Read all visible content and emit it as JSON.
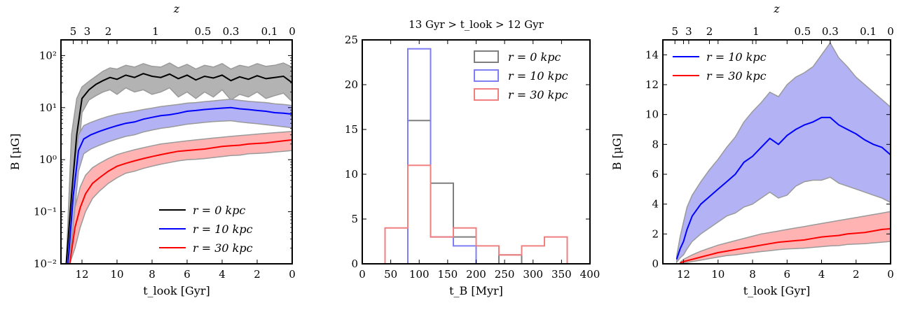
{
  "chart_data": [
    {
      "type": "line",
      "xlabel": "t_look [Gyr]",
      "ylabel": "B [μG]",
      "top_xlabel": "z",
      "xlim": [
        13.2,
        0
      ],
      "ylim": [
        0.01,
        200
      ],
      "yscale": "log",
      "x_ticks": [
        12,
        10,
        8,
        6,
        4,
        2,
        0
      ],
      "x_tick_labels": [
        "12",
        "10",
        "8",
        "6",
        "4",
        "2",
        "0"
      ],
      "y_ticks": [
        0.01,
        0.1,
        1,
        10,
        100
      ],
      "y_tick_labels": [
        "10⁻²",
        "10⁻¹",
        "10⁰",
        "10¹",
        "10²"
      ],
      "top_ticks": [
        {
          "z": "5",
          "t": 12.5
        },
        {
          "z": "3",
          "t": 11.7
        },
        {
          "z": "2",
          "t": 10.5
        },
        {
          "z": "1",
          "t": 7.8
        },
        {
          "z": "0.5",
          "t": 5.1
        },
        {
          "z": "0.3",
          "t": 3.5
        },
        {
          "z": "0.1",
          "t": 1.3
        },
        {
          "z": "0",
          "t": 0
        }
      ],
      "legend_location": "lower-right",
      "series": [
        {
          "name": "r = 0 kpc",
          "color": "#000000",
          "band_color": "#b3b3b3",
          "x": [
            12.9,
            12.6,
            12.3,
            12.0,
            11.6,
            11.2,
            10.8,
            10.4,
            10.0,
            9.5,
            9.0,
            8.5,
            8.0,
            7.5,
            7.0,
            6.5,
            6.0,
            5.5,
            5.0,
            4.5,
            4.0,
            3.5,
            3.0,
            2.5,
            2.0,
            1.5,
            1.0,
            0.5,
            0.0
          ],
          "y": [
            0.01,
            0.2,
            3,
            15,
            22,
            28,
            33,
            38,
            35,
            42,
            38,
            45,
            40,
            38,
            44,
            36,
            42,
            34,
            40,
            37,
            42,
            33,
            39,
            35,
            41,
            36,
            38,
            40,
            30
          ],
          "lower": [
            0.01,
            0.03,
            0.5,
            8,
            14,
            17,
            20,
            22,
            18,
            24,
            20,
            22,
            18,
            20,
            24,
            16,
            20,
            15,
            20,
            16,
            22,
            14,
            18,
            16,
            20,
            15,
            17,
            19,
            13
          ],
          "upper": [
            0.01,
            3,
            15,
            25,
            32,
            40,
            50,
            58,
            55,
            65,
            60,
            70,
            62,
            60,
            72,
            58,
            68,
            55,
            65,
            60,
            70,
            55,
            65,
            60,
            70,
            62,
            65,
            72,
            60
          ]
        },
        {
          "name": "r = 10 kpc",
          "color": "#0000ff",
          "band_color": "#b2b2f5",
          "x": [
            12.8,
            12.5,
            12.2,
            11.9,
            11.5,
            11.0,
            10.5,
            10.0,
            9.5,
            9.0,
            8.5,
            8.0,
            7.5,
            7.0,
            6.5,
            6.0,
            5.5,
            5.0,
            4.5,
            4.0,
            3.5,
            3.0,
            2.5,
            2.0,
            1.5,
            1.0,
            0.5,
            0.0
          ],
          "y": [
            0.01,
            0.2,
            1.5,
            2.5,
            3.0,
            3.5,
            4.0,
            4.5,
            5.0,
            5.3,
            6.0,
            6.5,
            7.0,
            7.3,
            7.8,
            8.5,
            8.8,
            9.2,
            9.5,
            9.8,
            10.0,
            9.5,
            9.2,
            8.8,
            8.5,
            8.0,
            7.8,
            7.5
          ],
          "lower": [
            0.01,
            0.05,
            0.6,
            1.3,
            1.6,
            1.9,
            2.2,
            2.5,
            2.8,
            3.0,
            3.4,
            3.7,
            4.0,
            4.2,
            4.5,
            4.8,
            5.0,
            5.2,
            5.4,
            5.5,
            5.6,
            5.3,
            5.1,
            4.9,
            4.7,
            4.5,
            4.3,
            4.1
          ],
          "upper": [
            0.01,
            0.5,
            3,
            4.5,
            5.2,
            6.0,
            6.8,
            7.5,
            8.0,
            8.5,
            9.2,
            9.8,
            10.5,
            11,
            11.5,
            12.2,
            12.5,
            13,
            13.5,
            14,
            14.5,
            13.8,
            13.2,
            12.8,
            12.5,
            11.8,
            11.5,
            11
          ]
        },
        {
          "name": "r = 30 kpc",
          "color": "#ff0000",
          "band_color": "#ffb3b3",
          "x": [
            12.7,
            12.4,
            12.1,
            11.8,
            11.4,
            11.0,
            10.5,
            10.0,
            9.5,
            9.0,
            8.5,
            8.0,
            7.5,
            7.0,
            6.5,
            6.0,
            5.5,
            5.0,
            4.5,
            4.0,
            3.5,
            3.0,
            2.5,
            2.0,
            1.5,
            1.0,
            0.5,
            0.0
          ],
          "y": [
            0.01,
            0.05,
            0.12,
            0.22,
            0.35,
            0.45,
            0.6,
            0.75,
            0.85,
            0.95,
            1.05,
            1.15,
            1.25,
            1.35,
            1.45,
            1.5,
            1.55,
            1.6,
            1.7,
            1.8,
            1.85,
            1.9,
            2.0,
            2.05,
            2.1,
            2.2,
            2.3,
            2.4
          ],
          "lower": [
            0.01,
            0.02,
            0.05,
            0.1,
            0.18,
            0.25,
            0.35,
            0.45,
            0.55,
            0.6,
            0.68,
            0.75,
            0.82,
            0.88,
            0.95,
            1.0,
            1.02,
            1.05,
            1.1,
            1.15,
            1.2,
            1.22,
            1.3,
            1.32,
            1.35,
            1.4,
            1.45,
            1.5
          ],
          "upper": [
            0.01,
            0.12,
            0.3,
            0.5,
            0.7,
            0.85,
            1.05,
            1.25,
            1.4,
            1.55,
            1.7,
            1.85,
            2.0,
            2.1,
            2.2,
            2.3,
            2.4,
            2.5,
            2.6,
            2.7,
            2.8,
            2.9,
            3.0,
            3.1,
            3.2,
            3.3,
            3.4,
            3.5
          ]
        }
      ]
    },
    {
      "type": "bar",
      "subtype": "step-histogram",
      "title": "13 Gyr > t_look > 12 Gyr",
      "xlabel": "t_B [Myr]",
      "ylabel": "",
      "xlim": [
        0,
        400
      ],
      "ylim": [
        0,
        25
      ],
      "x_ticks": [
        0,
        50,
        100,
        150,
        200,
        250,
        300,
        350,
        400
      ],
      "x_tick_labels": [
        "0",
        "50",
        "100",
        "150",
        "200",
        "250",
        "300",
        "350",
        "400"
      ],
      "y_ticks": [
        0,
        5,
        10,
        15,
        20,
        25
      ],
      "y_tick_labels": [
        "0",
        "5",
        "10",
        "15",
        "20",
        "25"
      ],
      "bin_edges": [
        40,
        80,
        120,
        160,
        200,
        240,
        280,
        320,
        360
      ],
      "legend_location": "top-right",
      "series": [
        {
          "name": "r = 0 kpc",
          "color": "#7f7f7f",
          "counts": [
            0,
            16,
            9,
            3,
            0,
            1,
            0,
            0
          ]
        },
        {
          "name": "r = 10 kpc",
          "color": "#7f7ff5",
          "counts": [
            0,
            24,
            3,
            2,
            0,
            0,
            0,
            0
          ]
        },
        {
          "name": "r = 30 kpc",
          "color": "#f08080",
          "counts": [
            4,
            11,
            3,
            4,
            2,
            1,
            2,
            3
          ]
        }
      ]
    },
    {
      "type": "line",
      "xlabel": "t_look [Gyr]",
      "ylabel": "B [μG]",
      "top_xlabel": "z",
      "xlim": [
        13.2,
        0
      ],
      "ylim": [
        0,
        15
      ],
      "x_ticks": [
        12,
        10,
        8,
        6,
        4,
        2,
        0
      ],
      "x_tick_labels": [
        "12",
        "10",
        "8",
        "6",
        "4",
        "2",
        "0"
      ],
      "y_ticks": [
        0,
        2,
        4,
        6,
        8,
        10,
        12,
        14
      ],
      "y_tick_labels": [
        "0",
        "2",
        "4",
        "6",
        "8",
        "10",
        "12",
        "14"
      ],
      "top_ticks": [
        {
          "z": "5",
          "t": 12.5
        },
        {
          "z": "3",
          "t": 11.7
        },
        {
          "z": "2",
          "t": 10.5
        },
        {
          "z": "1",
          "t": 7.8
        },
        {
          "z": "0.5",
          "t": 5.1
        },
        {
          "z": "0.3",
          "t": 3.5
        },
        {
          "z": "0.1",
          "t": 1.3
        },
        {
          "z": "0",
          "t": 0
        }
      ],
      "legend_location": "top-left",
      "series": [
        {
          "name": "r = 10 kpc",
          "color": "#0000ff",
          "band_color": "#b2b2f5",
          "x": [
            12.4,
            12.2,
            12.0,
            11.8,
            11.5,
            11.0,
            10.5,
            10.0,
            9.5,
            9.0,
            8.5,
            8.0,
            7.5,
            7.0,
            6.5,
            6.0,
            5.5,
            5.0,
            4.5,
            4.0,
            3.5,
            3.0,
            2.5,
            2.0,
            1.5,
            1.0,
            0.5,
            0.0
          ],
          "y": [
            0.3,
            1.0,
            1.5,
            2.3,
            3.2,
            4.0,
            4.5,
            5.0,
            5.5,
            6.0,
            6.8,
            7.2,
            7.8,
            8.4,
            8.0,
            8.6,
            9.0,
            9.3,
            9.5,
            9.8,
            9.8,
            9.3,
            9.0,
            8.7,
            8.3,
            8.0,
            7.8,
            7.3
          ],
          "lower": [
            0.1,
            0.4,
            0.6,
            1.0,
            1.5,
            2.0,
            2.4,
            2.8,
            3.2,
            3.4,
            3.8,
            4.0,
            4.4,
            4.8,
            4.4,
            4.6,
            5.2,
            5.5,
            5.6,
            5.6,
            5.8,
            5.4,
            5.2,
            5.0,
            4.8,
            4.6,
            4.4,
            4.1
          ],
          "upper": [
            0.5,
            1.8,
            2.8,
            3.8,
            4.6,
            5.5,
            6.3,
            7.0,
            7.8,
            8.5,
            9.5,
            10.2,
            10.8,
            11.5,
            11.2,
            12.0,
            12.5,
            12.8,
            13.2,
            14.0,
            14.8,
            13.8,
            13.2,
            12.5,
            12.0,
            11.5,
            11.0,
            10.5
          ]
        },
        {
          "name": "r = 30 kpc",
          "color": "#ff0000",
          "band_color": "#ffb3b3",
          "x": [
            12.2,
            12.0,
            11.5,
            11.0,
            10.5,
            10.0,
            9.5,
            9.0,
            8.5,
            8.0,
            7.5,
            7.0,
            6.5,
            6.0,
            5.5,
            5.0,
            4.5,
            4.0,
            3.5,
            3.0,
            2.5,
            2.0,
            1.5,
            1.0,
            0.5,
            0.0
          ],
          "y": [
            0.05,
            0.15,
            0.3,
            0.45,
            0.6,
            0.75,
            0.85,
            0.95,
            1.05,
            1.15,
            1.25,
            1.35,
            1.45,
            1.5,
            1.55,
            1.6,
            1.7,
            1.8,
            1.85,
            1.9,
            2.0,
            2.05,
            2.1,
            2.2,
            2.3,
            2.35
          ],
          "lower": [
            0.02,
            0.05,
            0.15,
            0.25,
            0.35,
            0.45,
            0.55,
            0.6,
            0.68,
            0.75,
            0.82,
            0.88,
            0.95,
            1.0,
            1.02,
            1.05,
            1.1,
            1.15,
            1.2,
            1.22,
            1.3,
            1.32,
            1.35,
            1.4,
            1.45,
            1.5
          ],
          "upper": [
            0.1,
            0.3,
            0.6,
            0.85,
            1.05,
            1.25,
            1.4,
            1.55,
            1.7,
            1.85,
            2.0,
            2.1,
            2.2,
            2.3,
            2.4,
            2.5,
            2.6,
            2.7,
            2.8,
            2.9,
            3.0,
            3.1,
            3.2,
            3.3,
            3.4,
            3.5
          ]
        }
      ]
    }
  ]
}
